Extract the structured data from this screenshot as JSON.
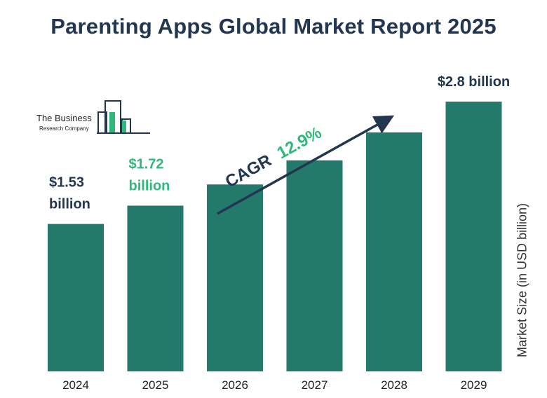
{
  "title": "Parenting Apps Global Market Report 2025",
  "logo": {
    "line1": "The Business",
    "line2": "Research Company"
  },
  "cagr": {
    "label": "CAGR",
    "value": "12.9%"
  },
  "colors": {
    "bar": "#237a6b",
    "title": "#22364f",
    "highlight": "#2fb87c",
    "arrow": "#22364f"
  },
  "chart_data": {
    "type": "bar",
    "categories": [
      "2024",
      "2025",
      "2026",
      "2027",
      "2028",
      "2029"
    ],
    "values": [
      1.53,
      1.72,
      1.94,
      2.19,
      2.48,
      2.8
    ],
    "ylabel": "Market Size (in USD billion)",
    "value_labels": [
      {
        "index": 0,
        "lines": [
          "$1.53",
          "billion"
        ],
        "highlight": false
      },
      {
        "index": 1,
        "lines": [
          "$1.72",
          "billion"
        ],
        "highlight": true
      },
      {
        "index": 5,
        "lines": [
          "$2.8 billion"
        ],
        "highlight": false
      }
    ]
  }
}
